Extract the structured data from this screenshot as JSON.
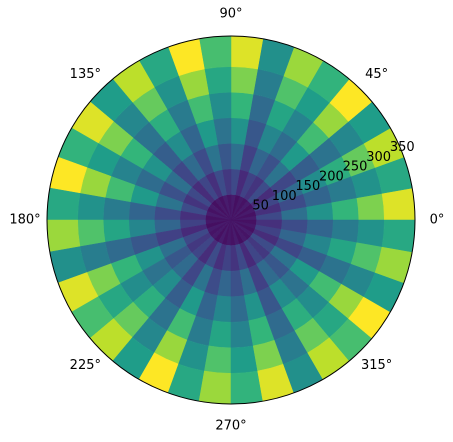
{
  "chart_data": {
    "type": "polar-mesh",
    "colormap": "viridis",
    "clim": [
      0,
      325
    ],
    "rlim": [
      0,
      360
    ],
    "rticks": [
      50,
      100,
      150,
      200,
      250,
      300,
      350
    ],
    "thetaticks": [
      {
        "value": 0,
        "label": "0°"
      },
      {
        "value": 45,
        "label": "45°"
      },
      {
        "value": 90,
        "label": "90°"
      },
      {
        "value": 135,
        "label": "135°"
      },
      {
        "value": 180,
        "label": "180°"
      },
      {
        "value": 225,
        "label": "225°"
      },
      {
        "value": 270,
        "label": "270°"
      },
      {
        "value": 315,
        "label": "315°"
      }
    ],
    "r_edges": [
      0,
      50,
      100,
      150,
      200,
      250,
      300,
      360
    ],
    "theta_edges": [
      0,
      10,
      20,
      30,
      40,
      50,
      60,
      70,
      80,
      90,
      100,
      110,
      120,
      130,
      140,
      150,
      160,
      170,
      180,
      190,
      200,
      210,
      220,
      230,
      240,
      250,
      260,
      270,
      280,
      290,
      300,
      310,
      320,
      330,
      340,
      350,
      360
    ],
    "values": [
      [
        24,
        71,
        119,
        166,
        214,
        261,
        309
      ],
      [
        15,
        45,
        75,
        105,
        135,
        165,
        195
      ],
      [
        23,
        68,
        113,
        158,
        203,
        248,
        293
      ],
      [
        14,
        41,
        69,
        96,
        124,
        151,
        179
      ],
      [
        25,
        75,
        125,
        175,
        225,
        275,
        325
      ],
      [
        16,
        49,
        81,
        114,
        146,
        179,
        211
      ],
      [
        21,
        64,
        106,
        149,
        191,
        234,
        276
      ],
      [
        13,
        38,
        63,
        88,
        113,
        138,
        163
      ],
      [
        24,
        71,
        119,
        166,
        214,
        261,
        309
      ],
      [
        18,
        53,
        88,
        123,
        158,
        193,
        228
      ],
      [
        25,
        75,
        125,
        175,
        225,
        275,
        325
      ],
      [
        15,
        45,
        75,
        105,
        135,
        165,
        195
      ],
      [
        23,
        68,
        113,
        158,
        203,
        248,
        293
      ],
      [
        14,
        41,
        69,
        96,
        124,
        151,
        179
      ],
      [
        24,
        71,
        119,
        166,
        214,
        261,
        309
      ],
      [
        16,
        49,
        81,
        114,
        146,
        179,
        211
      ],
      [
        25,
        75,
        125,
        175,
        225,
        275,
        325
      ],
      [
        15,
        45,
        75,
        105,
        135,
        165,
        195
      ],
      [
        21,
        64,
        106,
        149,
        191,
        234,
        276
      ],
      [
        13,
        38,
        63,
        88,
        113,
        138,
        163
      ],
      [
        24,
        71,
        119,
        166,
        214,
        261,
        309
      ],
      [
        18,
        53,
        88,
        123,
        158,
        193,
        228
      ],
      [
        23,
        68,
        113,
        158,
        203,
        248,
        293
      ],
      [
        14,
        41,
        69,
        96,
        124,
        151,
        179
      ],
      [
        25,
        75,
        125,
        175,
        225,
        275,
        325
      ],
      [
        15,
        45,
        75,
        105,
        135,
        165,
        195
      ],
      [
        21,
        64,
        106,
        149,
        191,
        234,
        276
      ],
      [
        16,
        49,
        81,
        114,
        146,
        179,
        211
      ],
      [
        24,
        71,
        119,
        166,
        214,
        261,
        309
      ],
      [
        13,
        38,
        63,
        88,
        113,
        138,
        163
      ],
      [
        23,
        68,
        113,
        158,
        203,
        248,
        293
      ],
      [
        18,
        53,
        88,
        123,
        158,
        193,
        228
      ],
      [
        25,
        75,
        125,
        175,
        225,
        275,
        325
      ],
      [
        14,
        41,
        69,
        96,
        124,
        151,
        179
      ],
      [
        21,
        64,
        106,
        149,
        191,
        234,
        276
      ],
      [
        15,
        45,
        75,
        105,
        135,
        165,
        195
      ]
    ]
  }
}
